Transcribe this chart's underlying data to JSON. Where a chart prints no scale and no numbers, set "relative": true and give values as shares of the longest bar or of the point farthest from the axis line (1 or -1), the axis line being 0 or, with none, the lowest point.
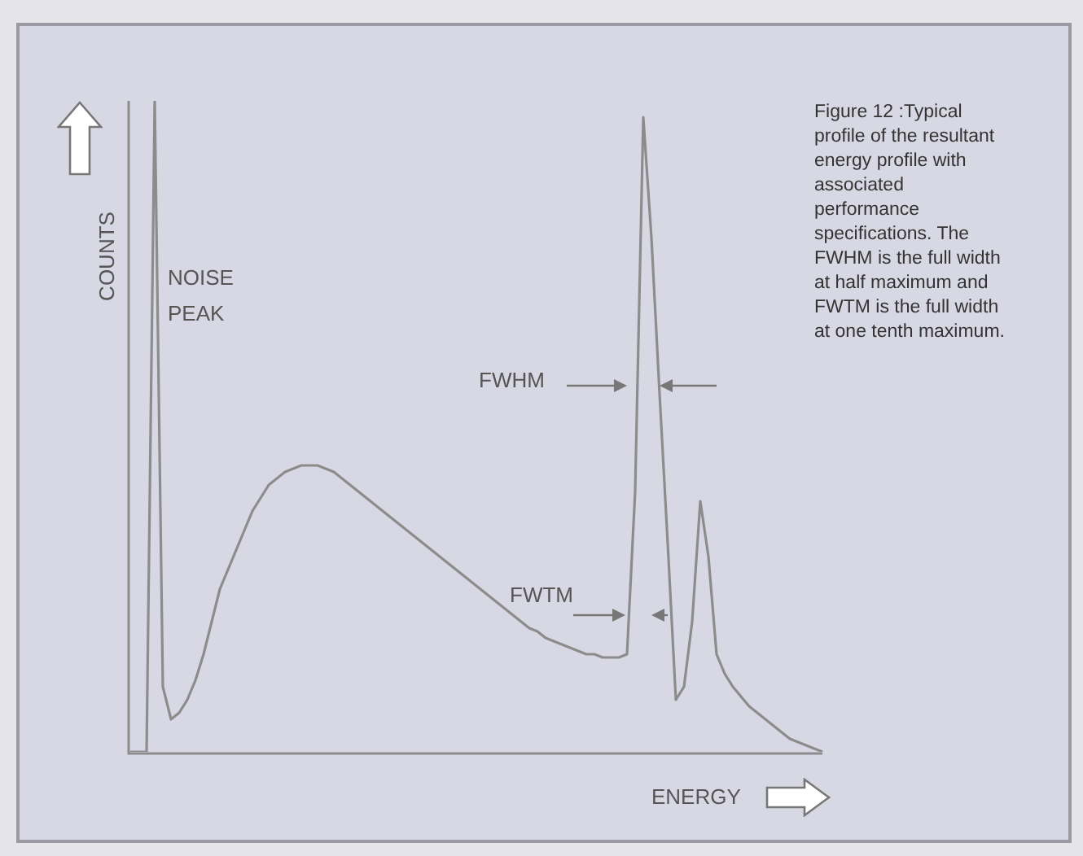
{
  "chart_data": {
    "type": "line",
    "relative": true,
    "xlabel": "ENERGY",
    "ylabel": "COUNTS",
    "categories": [
      null,
      null,
      null,
      null,
      null,
      null,
      null,
      null,
      null,
      null,
      null,
      null,
      null,
      null,
      null,
      null,
      null,
      null,
      null,
      null,
      null,
      null,
      null,
      null,
      null,
      null,
      null,
      null,
      null,
      null,
      null,
      null,
      null,
      null,
      null,
      null,
      null,
      null,
      null,
      null,
      null,
      null,
      null,
      null,
      null,
      null,
      null,
      null,
      null,
      null,
      null,
      null,
      null,
      null,
      null,
      null,
      null,
      null,
      null,
      null,
      null,
      null,
      null,
      null,
      null,
      null,
      null,
      null,
      null,
      null,
      null,
      null,
      null,
      null,
      null,
      null,
      null,
      null,
      null,
      null,
      null,
      null,
      null,
      null,
      null,
      null
    ],
    "series": [
      {
        "color": "#8c8c8c",
        "values": [
          0,
          0,
          0,
          1,
          0.1,
          0.05,
          0.06,
          0.08,
          0.11,
          0.15,
          0.2,
          0.25,
          0.28,
          0.31,
          0.34,
          0.37,
          0.39,
          0.41,
          0.42,
          0.43,
          0.435,
          0.44,
          0.44,
          0.44,
          0.435,
          0.43,
          0.42,
          0.41,
          0.4,
          0.39,
          0.38,
          0.37,
          0.36,
          0.35,
          0.34,
          0.33,
          0.32,
          0.31,
          0.3,
          0.29,
          0.28,
          0.27,
          0.26,
          0.25,
          0.24,
          0.23,
          0.22,
          0.21,
          0.2,
          0.19,
          0.185,
          0.175,
          0.17,
          0.165,
          0.16,
          0.155,
          0.15,
          0.15,
          0.145,
          0.145,
          0.145,
          0.15,
          0.4,
          0.975,
          0.79,
          0.55,
          0.32,
          0.08,
          0.1,
          0.2,
          0.385,
          0.3,
          0.15,
          0.12,
          0.1,
          0.085,
          0.07,
          0.06,
          0.05,
          0.04,
          0.03,
          0.02,
          0.015,
          0.01,
          0.005,
          0
        ]
      }
    ],
    "marker": "none",
    "legend": false,
    "annotations": [
      "NOISE PEAK",
      "FWHM",
      "FWTM",
      "Figure 12 :Typical profile of the resultant energy profile with associated performance specifications. The FWHM is the full width at half maximum and FWTM is the full width at one tenth maximum."
    ]
  }
}
